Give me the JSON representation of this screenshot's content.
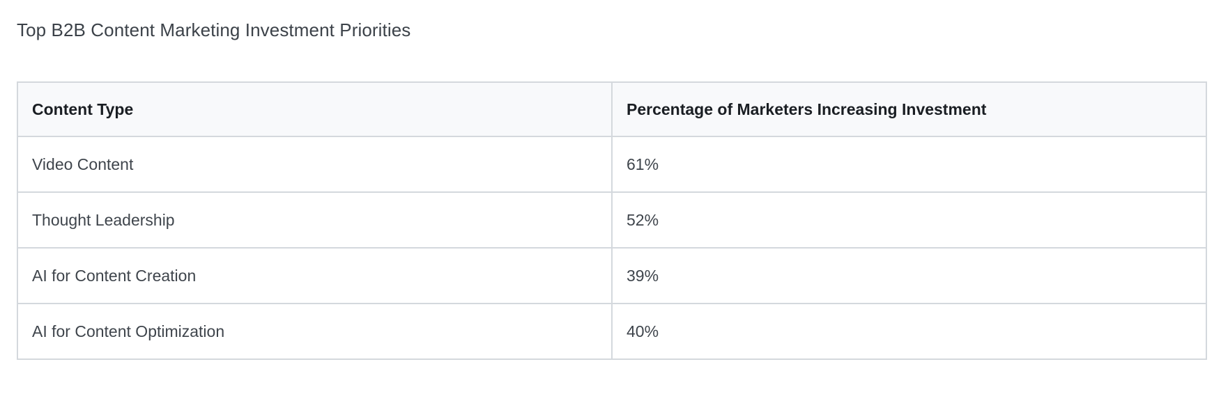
{
  "title": "Top B2B Content Marketing Investment Priorities",
  "table": {
    "columns": [
      "Content Type",
      "Percentage of Marketers Increasing Investment"
    ],
    "rows": [
      {
        "content_type": "Video Content",
        "percentage": "61%"
      },
      {
        "content_type": "Thought Leadership",
        "percentage": "52%"
      },
      {
        "content_type": "AI for Content Creation",
        "percentage": "39%"
      },
      {
        "content_type": "AI for Content Optimization",
        "percentage": "40%"
      }
    ]
  },
  "chart_data": {
    "type": "table",
    "title": "Top B2B Content Marketing Investment Priorities",
    "columns": [
      "Content Type",
      "Percentage of Marketers Increasing Investment"
    ],
    "categories": [
      "Video Content",
      "Thought Leadership",
      "AI for Content Creation",
      "AI for Content Optimization"
    ],
    "values": [
      61,
      52,
      39,
      40
    ],
    "value_unit": "%"
  },
  "colors": {
    "page_background": "#ffffff",
    "table_border": "#d4d8dd",
    "header_background": "#f8f9fb",
    "header_text": "#1a1e23",
    "body_text": "#3f454c",
    "title_text": "#3c4249"
  }
}
